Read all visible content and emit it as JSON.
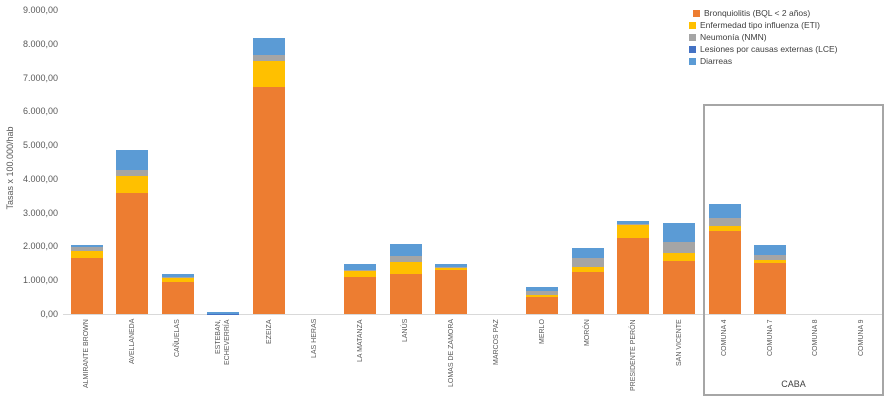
{
  "chart_data": {
    "type": "bar",
    "stacked": true,
    "ylabel": "Tasas x 100.000/hab",
    "ylim": [
      0,
      9000
    ],
    "ytick_step": 1000,
    "ytick_labels": [
      "0,00",
      "1.000,00",
      "2.000,00",
      "3.000,00",
      "4.000,00",
      "5.000,00",
      "6.000,00",
      "7.000,00",
      "8.000,00",
      "9.000,00"
    ],
    "grid": false,
    "legend_position": "top-right",
    "categories": [
      "ALMIRANTE BROWN",
      "AVELLANEDA",
      "CAÑUELAS",
      "ESTEBAN,\nECHEVERRÍA",
      "EZEIZA",
      "LAS HERAS",
      "LA MATANZA",
      "LANÚS",
      "LOMAS DE ZAMORA",
      "MARCOS PAZ",
      "MERLO",
      "MORÓN",
      "PRESIDENTE PERÓN",
      "SAN VICENTE",
      "COMUNA 4",
      "COMUNA 7",
      "COMUNA 8",
      "COMUNA 9"
    ],
    "series": [
      {
        "key": "bql",
        "name": "Bronquiolitis (BQL < 2 años)",
        "color": "#ED7D31",
        "values": [
          1650,
          3570,
          950,
          0,
          6720,
          0,
          1110,
          1190,
          1290,
          0,
          490,
          1240,
          2260,
          1570,
          2460,
          1520,
          0,
          0
        ]
      },
      {
        "key": "eti",
        "name": "Enfermedad tipo influenza (ETI)",
        "color": "#FFC000",
        "values": [
          210,
          520,
          130,
          0,
          760,
          0,
          170,
          360,
          60,
          0,
          80,
          150,
          380,
          250,
          150,
          80,
          0,
          0
        ]
      },
      {
        "key": "nmn",
        "name": "Neumonía (NMN)",
        "color": "#A5A5A5",
        "values": [
          120,
          180,
          20,
          0,
          200,
          0,
          30,
          170,
          40,
          0,
          100,
          270,
          20,
          300,
          220,
          140,
          0,
          0
        ]
      },
      {
        "key": "lce",
        "name": "Lesiones por causas externas (LCE)",
        "color": "#4472C4",
        "values": [
          0,
          0,
          0,
          10,
          0,
          0,
          0,
          0,
          0,
          0,
          0,
          0,
          0,
          0,
          0,
          0,
          0,
          0
        ]
      },
      {
        "key": "diarreas",
        "name": "Diarreas",
        "color": "#5B9BD5",
        "values": [
          70,
          580,
          80,
          50,
          500,
          0,
          180,
          360,
          90,
          0,
          140,
          290,
          90,
          590,
          430,
          290,
          0,
          0
        ]
      }
    ],
    "annotation": "CABA",
    "annotation_box_categories": [
      "COMUNA 4",
      "COMUNA 7",
      "COMUNA 8",
      "COMUNA 9"
    ]
  },
  "colors": {
    "axis_text": "#595959",
    "legend_text": "#404040",
    "axis_line": "#d9d9d9",
    "highlight_box_border": "#a6a6a6"
  }
}
